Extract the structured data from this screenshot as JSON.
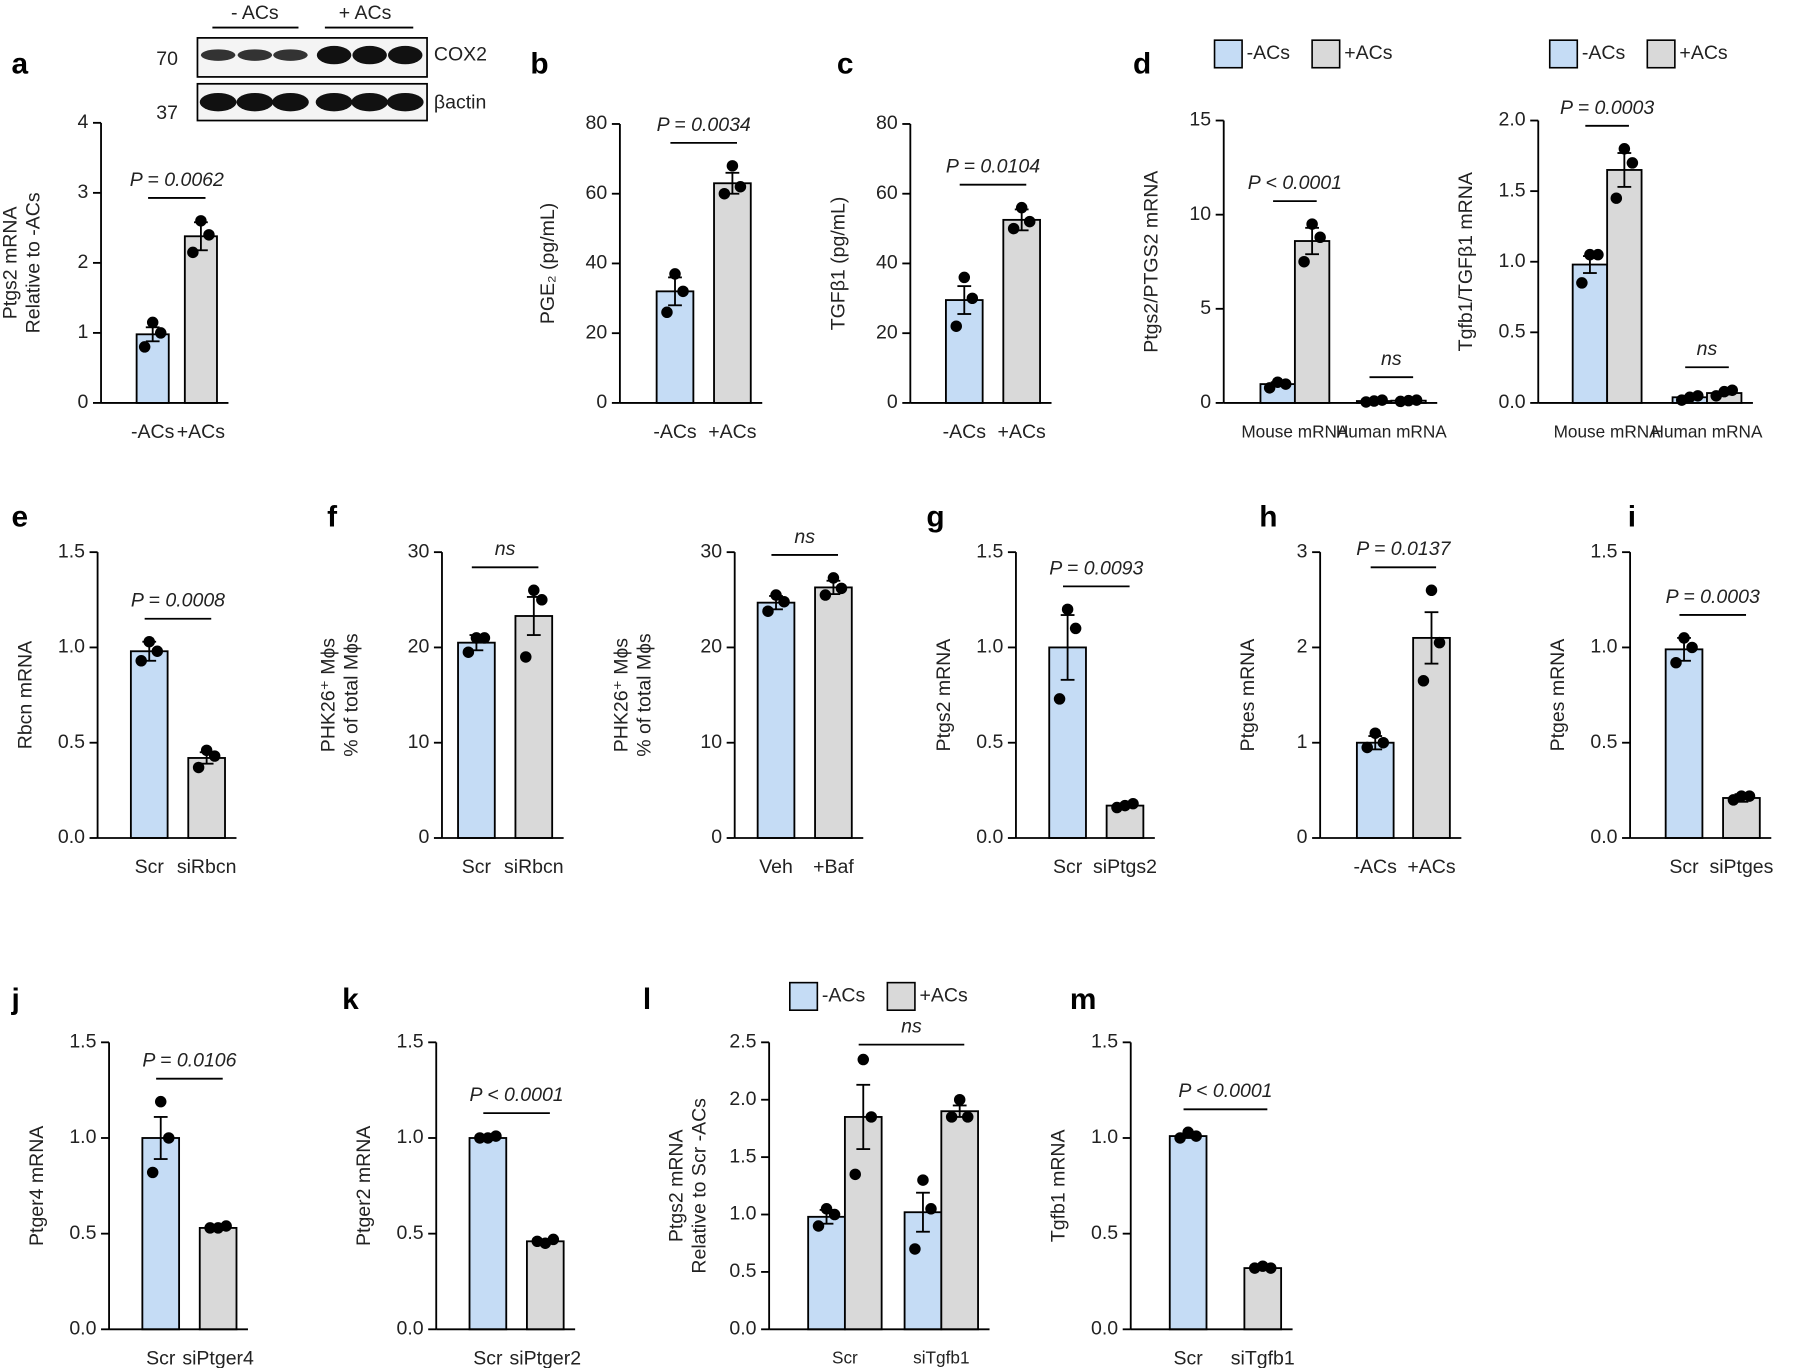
{
  "chart_data": [
    {
      "type": "bar",
      "panel": "a",
      "ylabel": [
        "Ptgs2 mRNA",
        "Relative to -ACs"
      ],
      "categories": [
        "-ACs",
        "+ACs"
      ],
      "values": [
        0.98,
        2.38
      ],
      "errors": [
        0.1,
        0.2
      ],
      "points": [
        [
          0.8,
          1.15,
          1.0
        ],
        [
          2.15,
          2.6,
          2.4
        ]
      ],
      "colors": [
        "#c5dcf5",
        "#d9d9d9"
      ],
      "ylim": [
        0,
        4
      ],
      "yticks": [
        0,
        1,
        2,
        3,
        4
      ],
      "annotations": [
        "P = 0.0062"
      ],
      "blot": {
        "groups": [
          "- ACs",
          "+ ACs"
        ],
        "markers": [
          70,
          37
        ],
        "bands": [
          "COX2",
          "βactin"
        ]
      }
    },
    {
      "type": "bar",
      "panel": "b",
      "ylabel": [
        "PGE₂ (pg/mL)"
      ],
      "categories": [
        "-ACs",
        "+ACs"
      ],
      "values": [
        32,
        63
      ],
      "errors": [
        4,
        3
      ],
      "points": [
        [
          26,
          37,
          32
        ],
        [
          60,
          68,
          62
        ]
      ],
      "colors": [
        "#c5dcf5",
        "#d9d9d9"
      ],
      "ylim": [
        0,
        80
      ],
      "yticks": [
        0,
        20,
        40,
        60,
        80
      ],
      "annotations": [
        "P = 0.0034"
      ]
    },
    {
      "type": "bar",
      "panel": "c",
      "ylabel": [
        "TGFβ1 (pg/mL)"
      ],
      "categories": [
        "-ACs",
        "+ACs"
      ],
      "values": [
        29.5,
        52.5
      ],
      "errors": [
        4,
        3
      ],
      "points": [
        [
          22,
          36,
          30
        ],
        [
          50,
          56,
          52
        ]
      ],
      "colors": [
        "#c5dcf5",
        "#d9d9d9"
      ],
      "ylim": [
        0,
        80
      ],
      "yticks": [
        0,
        20,
        40,
        60,
        80
      ],
      "annotations": [
        "P = 0.0104"
      ]
    },
    {
      "type": "grouped-bar",
      "panel": "d",
      "ylabel": [
        "Ptgs2/PTGS2 mRNA"
      ],
      "categories": [
        "Mouse mRNA",
        "Human mRNA"
      ],
      "series": [
        {
          "name": "-ACs",
          "color": "#c5dcf5",
          "values": [
            1.0,
            0.1
          ],
          "errors": [
            0.1,
            0.05
          ],
          "points": [
            [
              0.8,
              1.1,
              1.0
            ],
            [
              0.05,
              0.1,
              0.15
            ]
          ]
        },
        {
          "name": "+ACs",
          "color": "#d9d9d9",
          "values": [
            8.6,
            0.12
          ],
          "errors": [
            0.7,
            0.03
          ],
          "points": [
            [
              7.5,
              9.5,
              8.8
            ],
            [
              0.08,
              0.12,
              0.15
            ]
          ]
        }
      ],
      "ylim": [
        0,
        15
      ],
      "yticks": [
        0,
        5,
        10,
        15
      ],
      "annotations": [
        "P < 0.0001",
        "ns"
      ]
    },
    {
      "type": "grouped-bar",
      "ylabel": [
        "Tgfb1/TGFβ1 mRNA"
      ],
      "categories": [
        "Mouse mRNA",
        "Human mRNA"
      ],
      "series": [
        {
          "name": "-ACs",
          "color": "#c5dcf5",
          "values": [
            0.98,
            0.04
          ],
          "errors": [
            0.06,
            0.01
          ],
          "points": [
            [
              0.85,
              1.05,
              1.05
            ],
            [
              0.02,
              0.04,
              0.05
            ]
          ]
        },
        {
          "name": "+ACs",
          "color": "#d9d9d9",
          "values": [
            1.65,
            0.07
          ],
          "errors": [
            0.12,
            0.01
          ],
          "points": [
            [
              1.45,
              1.8,
              1.7
            ],
            [
              0.05,
              0.08,
              0.09
            ]
          ]
        }
      ],
      "ylim": [
        0,
        2
      ],
      "yticks": [
        {
          "value": 0,
          "label": "0.0"
        },
        0.5,
        {
          "value": 1,
          "label": "1.0"
        },
        1.5,
        {
          "value": 2,
          "label": "2.0"
        }
      ],
      "annotations": [
        "P = 0.0003",
        "ns"
      ]
    },
    {
      "type": "bar",
      "panel": "e",
      "ylabel": [
        "Rbcn mRNA"
      ],
      "categories": [
        "Scr",
        "siRbcn"
      ],
      "values": [
        0.98,
        0.42
      ],
      "errors": [
        0.05,
        0.03
      ],
      "points": [
        [
          0.93,
          1.03,
          0.98
        ],
        [
          0.37,
          0.46,
          0.43
        ]
      ],
      "colors": [
        "#c5dcf5",
        "#d9d9d9"
      ],
      "ylim": [
        0,
        1.5
      ],
      "yticks": [
        {
          "value": 0,
          "label": "0.0"
        },
        0.5,
        {
          "value": 1,
          "label": "1.0"
        },
        1.5
      ],
      "annotations": [
        "P = 0.0008"
      ]
    },
    {
      "type": "bar",
      "panel": "f",
      "ylabel": [
        "PHK26⁺ Mɸs",
        "% of total Mɸs"
      ],
      "categories": [
        "Scr",
        "siRbcn"
      ],
      "values": [
        20.5,
        23.3
      ],
      "errors": [
        0.8,
        2.0
      ],
      "points": [
        [
          19.5,
          21,
          21
        ],
        [
          19,
          26,
          25
        ]
      ],
      "colors": [
        "#c5dcf5",
        "#d9d9d9"
      ],
      "ylim": [
        0,
        30
      ],
      "yticks": [
        0,
        10,
        20,
        30
      ],
      "annotations": [
        "ns"
      ]
    },
    {
      "type": "bar",
      "ylabel": [
        "PHK26⁺ Mɸs",
        "% of total Mɸs"
      ],
      "categories": [
        "Veh",
        "+Baf"
      ],
      "values": [
        24.7,
        26.3
      ],
      "errors": [
        0.7,
        0.7
      ],
      "points": [
        [
          23.8,
          25.5,
          24.8
        ],
        [
          25.5,
          27.3,
          26.2
        ]
      ],
      "colors": [
        "#c5dcf5",
        "#d9d9d9"
      ],
      "ylim": [
        0,
        30
      ],
      "yticks": [
        0,
        10,
        20,
        30
      ],
      "annotations": [
        "ns"
      ]
    },
    {
      "type": "bar",
      "panel": "g",
      "ylabel": [
        "Ptgs2 mRNA"
      ],
      "categories": [
        "Scr",
        "siPtgs2"
      ],
      "values": [
        1.0,
        0.17
      ],
      "errors": [
        0.17,
        0.01
      ],
      "points": [
        [
          0.73,
          1.2,
          1.1
        ],
        [
          0.16,
          0.17,
          0.18
        ]
      ],
      "colors": [
        "#c5dcf5",
        "#d9d9d9"
      ],
      "ylim": [
        0,
        1.5
      ],
      "yticks": [
        {
          "value": 0,
          "label": "0.0"
        },
        0.5,
        {
          "value": 1,
          "label": "1.0"
        },
        1.5
      ],
      "annotations": [
        "P = 0.0093"
      ]
    },
    {
      "type": "bar",
      "panel": "h",
      "ylabel": [
        "Ptges mRNA"
      ],
      "categories": [
        "-ACs",
        "+ACs"
      ],
      "values": [
        1.0,
        2.1
      ],
      "errors": [
        0.07,
        0.27
      ],
      "points": [
        [
          0.95,
          1.1,
          1.0
        ],
        [
          1.65,
          2.6,
          2.05
        ]
      ],
      "colors": [
        "#c5dcf5",
        "#d9d9d9"
      ],
      "ylim": [
        0,
        3
      ],
      "yticks": [
        0,
        1,
        2,
        3
      ],
      "annotations": [
        "P = 0.0137"
      ]
    },
    {
      "type": "bar",
      "panel": "i",
      "ylabel": [
        "Ptges mRNA"
      ],
      "categories": [
        "Scr",
        "siPtges"
      ],
      "values": [
        0.99,
        0.21
      ],
      "errors": [
        0.06,
        0.02
      ],
      "points": [
        [
          0.92,
          1.05,
          1.0
        ],
        [
          0.2,
          0.22,
          0.22
        ]
      ],
      "colors": [
        "#c5dcf5",
        "#d9d9d9"
      ],
      "ylim": [
        0,
        1.5
      ],
      "yticks": [
        {
          "value": 0,
          "label": "0.0"
        },
        0.5,
        {
          "value": 1,
          "label": "1.0"
        },
        1.5
      ],
      "annotations": [
        "P = 0.0003"
      ]
    },
    {
      "type": "bar",
      "panel": "j",
      "ylabel": [
        "Ptger4 mRNA"
      ],
      "categories": [
        "Scr",
        "siPtger4"
      ],
      "values": [
        1.0,
        0.53
      ],
      "errors": [
        0.11,
        0.01
      ],
      "points": [
        [
          0.82,
          1.19,
          1.0
        ],
        [
          0.53,
          0.53,
          0.54
        ]
      ],
      "colors": [
        "#c5dcf5",
        "#d9d9d9"
      ],
      "ylim": [
        0,
        1.5
      ],
      "yticks": [
        {
          "value": 0,
          "label": "0.0"
        },
        0.5,
        {
          "value": 1,
          "label": "1.0"
        },
        1.5
      ],
      "annotations": [
        "P = 0.0106"
      ]
    },
    {
      "type": "bar",
      "panel": "k",
      "ylabel": [
        "Ptger2 mRNA"
      ],
      "categories": [
        "Scr",
        "siPtger2"
      ],
      "values": [
        1.0,
        0.46
      ],
      "errors": [
        0.01,
        0.01
      ],
      "points": [
        [
          1.0,
          1.0,
          1.01
        ],
        [
          0.46,
          0.45,
          0.47
        ]
      ],
      "colors": [
        "#c5dcf5",
        "#d9d9d9"
      ],
      "ylim": [
        0,
        1.5
      ],
      "yticks": [
        {
          "value": 0,
          "label": "0.0"
        },
        0.5,
        {
          "value": 1,
          "label": "1.0"
        },
        1.5
      ],
      "annotations": [
        "P < 0.0001"
      ]
    },
    {
      "type": "grouped-bar",
      "panel": "l",
      "ylabel": [
        "Ptgs2 mRNA",
        "Relative to Scr -ACs"
      ],
      "categories": [
        "Scr",
        "siTgfb1"
      ],
      "series": [
        {
          "name": "-ACs",
          "color": "#c5dcf5",
          "values": [
            0.98,
            1.02
          ],
          "errors": [
            0.06,
            0.17
          ],
          "points": [
            [
              0.9,
              1.05,
              1.0
            ],
            [
              0.7,
              1.3,
              1.05
            ]
          ]
        },
        {
          "name": "+ACs",
          "color": "#d9d9d9",
          "values": [
            1.85,
            1.9
          ],
          "errors": [
            0.28,
            0.05
          ],
          "points": [
            [
              1.35,
              2.35,
              1.85
            ],
            [
              1.85,
              2.0,
              1.85
            ]
          ]
        }
      ],
      "ylim": [
        0,
        2.5
      ],
      "yticks": [
        {
          "value": 0,
          "label": "0.0"
        },
        0.5,
        {
          "value": 1,
          "label": "1.0"
        },
        1.5,
        {
          "value": 2,
          "label": "2.0"
        },
        2.5
      ],
      "annotations": [
        "ns"
      ]
    },
    {
      "type": "bar",
      "panel": "m",
      "ylabel": [
        "Tgfb1 mRNA"
      ],
      "categories": [
        "Scr",
        "siTgfb1"
      ],
      "values": [
        1.01,
        0.32
      ],
      "errors": [
        0.01,
        0.01
      ],
      "points": [
        [
          1.0,
          1.03,
          1.01
        ],
        [
          0.32,
          0.33,
          0.32
        ]
      ],
      "colors": [
        "#c5dcf5",
        "#d9d9d9"
      ],
      "ylim": [
        0,
        1.5
      ],
      "yticks": [
        {
          "value": 0,
          "label": "0.0"
        },
        0.5,
        {
          "value": 1,
          "label": "1.0"
        },
        1.5
      ],
      "annotations": [
        "P < 0.0001"
      ]
    }
  ]
}
